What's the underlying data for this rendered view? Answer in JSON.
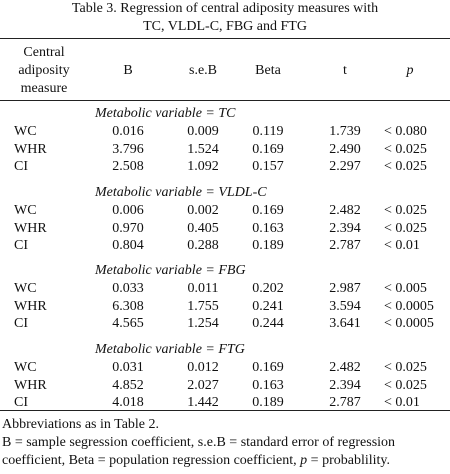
{
  "title": [
    "Table 3.   Regression of central adiposity measures with",
    "TC, VLDL-C, FBG and FTG"
  ],
  "table": {
    "header": [
      [
        "Central",
        "adiposity",
        "measure"
      ],
      "B",
      "s.e.B",
      "Beta",
      "t",
      "p"
    ],
    "groups": [
      {
        "label": "Metabolic variable = TC",
        "rows": [
          [
            "WC",
            "0.016",
            "0.009",
            "0.119",
            "1.739",
            "< 0.080"
          ],
          [
            "WHR",
            "3.796",
            "1.524",
            "0.169",
            "2.490",
            "< 0.025"
          ],
          [
            "CI",
            "2.508",
            "1.092",
            "0.157",
            "2.297",
            "< 0.025"
          ]
        ]
      },
      {
        "label": "Metabolic variable = VLDL-C",
        "rows": [
          [
            "WC",
            "0.006",
            "0.002",
            "0.169",
            "2.482",
            "< 0.025"
          ],
          [
            "WHR",
            "0.970",
            "0.405",
            "0.163",
            "2.394",
            "< 0.025"
          ],
          [
            "CI",
            "0.804",
            "0.288",
            "0.189",
            "2.787",
            "< 0.01"
          ]
        ]
      },
      {
        "label": "Metabolic variable = FBG",
        "rows": [
          [
            "WC",
            "0.033",
            "0.011",
            "0.202",
            "2.987",
            "< 0.005"
          ],
          [
            "WHR",
            "6.308",
            "1.755",
            "0.241",
            "3.594",
            "< 0.0005"
          ],
          [
            "CI",
            "4.565",
            "1.254",
            "0.244",
            "3.641",
            "< 0.0005"
          ]
        ]
      },
      {
        "label": "Metabolic variable = FTG",
        "rows": [
          [
            "WC",
            "0.031",
            "0.012",
            "0.169",
            "2.482",
            "< 0.025"
          ],
          [
            "WHR",
            "4.852",
            "2.027",
            "0.163",
            "2.394",
            "< 0.025"
          ],
          [
            "CI",
            "4.018",
            "1.442",
            "0.189",
            "2.787",
            "< 0.01"
          ]
        ]
      }
    ]
  },
  "footnotes": {
    "abbreviations": "Abbreviations as in Table 2.",
    "definitions": [
      "B = sample segression coefficient, s.e.B = standard error of regression coefficient, Beta = population regression coefficient,",
      "p",
      "= probablility."
    ]
  }
}
